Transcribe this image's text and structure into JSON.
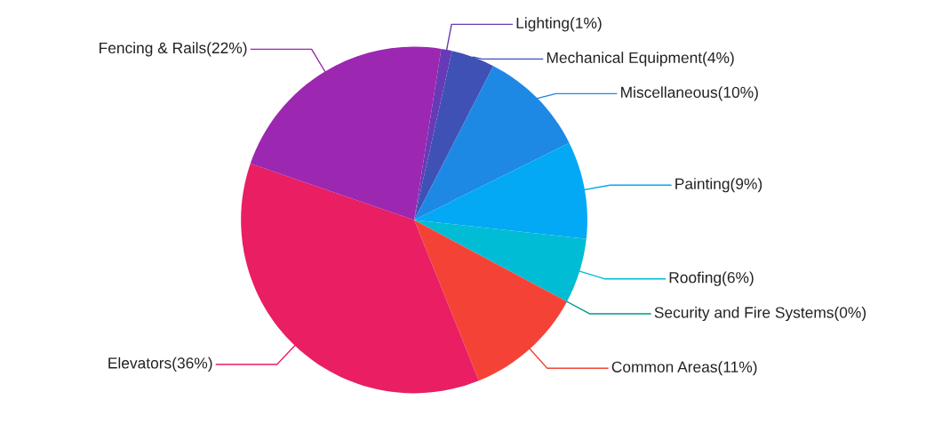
{
  "chart_data": {
    "type": "pie",
    "categories": [
      "Lighting",
      "Mechanical Equipment",
      "Miscellaneous",
      "Painting",
      "Roofing",
      "Security and Fire Systems",
      "Common Areas",
      "Elevators",
      "Fencing & Rails"
    ],
    "values": [
      1,
      4,
      10,
      9,
      6,
      0,
      11,
      36,
      22
    ],
    "value_labels": [
      "(1%)",
      "(4%)",
      "(10%)",
      "(9%)",
      "(6%)",
      "(0%)",
      "(11%)",
      "(36%)",
      "(22%)"
    ],
    "colors": [
      "#673ab7",
      "#3f51b5",
      "#1e88e5",
      "#03a9f4",
      "#00bcd4",
      "#009688",
      "#f44336",
      "#e91e63",
      "#9c27b0"
    ],
    "legend": false
  }
}
